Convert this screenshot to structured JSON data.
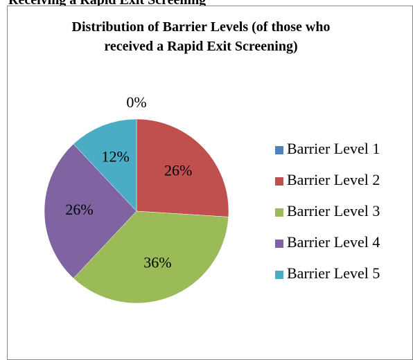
{
  "header": {
    "title": "Receiving a Rapid Exit Screening"
  },
  "chart_data": {
    "type": "pie",
    "title": "Distribution of Barrier Levels (of those who received a Rapid Exit Screening)",
    "categories": [
      "Barrier Level 1",
      "Barrier Level 2",
      "Barrier Level 3",
      "Barrier Level 4",
      "Barrier Level 5"
    ],
    "values": [
      0,
      26,
      36,
      26,
      12
    ],
    "value_labels": [
      "0%",
      "26%",
      "36%",
      "26%",
      "12%"
    ],
    "colors": [
      "#4f81bd",
      "#c0504d",
      "#9bbb59",
      "#8064a2",
      "#4bacc6"
    ],
    "legend": "right"
  }
}
